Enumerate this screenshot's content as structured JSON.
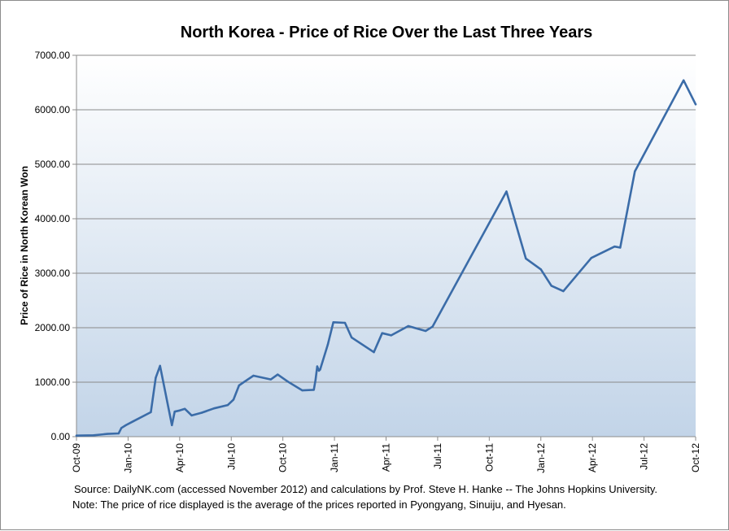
{
  "chart_data": {
    "type": "line",
    "title": "North Korea - Price of Rice Over the Last Three Years",
    "xlabel": "",
    "ylabel": "Price of Rice in North Korean Won",
    "ylim": [
      0,
      7000
    ],
    "yticks": [
      "0.00",
      "1000.00",
      "2000.00",
      "3000.00",
      "4000.00",
      "5000.00",
      "6000.00",
      "7000.00"
    ],
    "xticks": [
      "Oct-09",
      "Jan-10",
      "Apr-10",
      "Jul-10",
      "Oct-10",
      "Jan-11",
      "Apr-11",
      "Jul-11",
      "Oct-11",
      "Jan-12",
      "Apr-12",
      "Jul-12",
      "Oct-12"
    ],
    "grid": true,
    "line_color": "#3b6ca8",
    "series": [
      {
        "x": [
          "2009-10-01",
          "2009-11-01",
          "2009-11-25",
          "2009-12-15",
          "2009-12-20",
          "2009-12-28",
          "2010-01-10",
          "2010-02-10",
          "2010-02-18",
          "2010-02-25",
          "2010-03-18",
          "2010-03-23",
          "2010-04-01",
          "2010-04-10",
          "2010-04-22",
          "2010-05-10",
          "2010-06-01",
          "2010-06-25",
          "2010-07-05",
          "2010-07-15",
          "2010-07-25",
          "2010-08-10",
          "2010-09-10",
          "2010-09-22",
          "2010-10-10",
          "2010-11-05",
          "2010-11-25",
          "2010-11-28",
          "2010-12-01",
          "2010-12-04",
          "2010-12-06",
          "2010-12-20",
          "2010-12-30",
          "2011-01-20",
          "2011-02-01",
          "2011-03-10",
          "2011-03-25",
          "2011-04-10",
          "2011-05-10",
          "2011-06-10",
          "2011-06-22",
          "2011-11-01",
          "2011-12-05",
          "2012-01-01",
          "2012-01-20",
          "2012-02-10",
          "2012-03-30",
          "2012-05-10",
          "2012-05-20",
          "2012-06-15",
          "2012-09-10",
          "2012-10-01"
        ],
        "values": [
          20,
          25,
          50,
          60,
          160,
          210,
          280,
          450,
          1080,
          1300,
          210,
          460,
          480,
          510,
          390,
          440,
          520,
          580,
          680,
          940,
          1010,
          1120,
          1050,
          1140,
          1010,
          850,
          860,
          1040,
          1290,
          1210,
          1230,
          1690,
          2100,
          2090,
          1820,
          1550,
          1900,
          1860,
          2030,
          1940,
          2020,
          4500,
          3270,
          3070,
          2770,
          2670,
          3280,
          3490,
          3470,
          4870,
          6540,
          6100
        ]
      }
    ]
  },
  "notes": {
    "source": "Source: DailyNK.com (accessed November 2012) and calculations by Prof. Steve H. Hanke -- The Johns Hopkins University.",
    "note": "Note: The price of rice displayed is the average  of the prices reported in Pyongyang, Sinuiju, and Hyesan."
  }
}
